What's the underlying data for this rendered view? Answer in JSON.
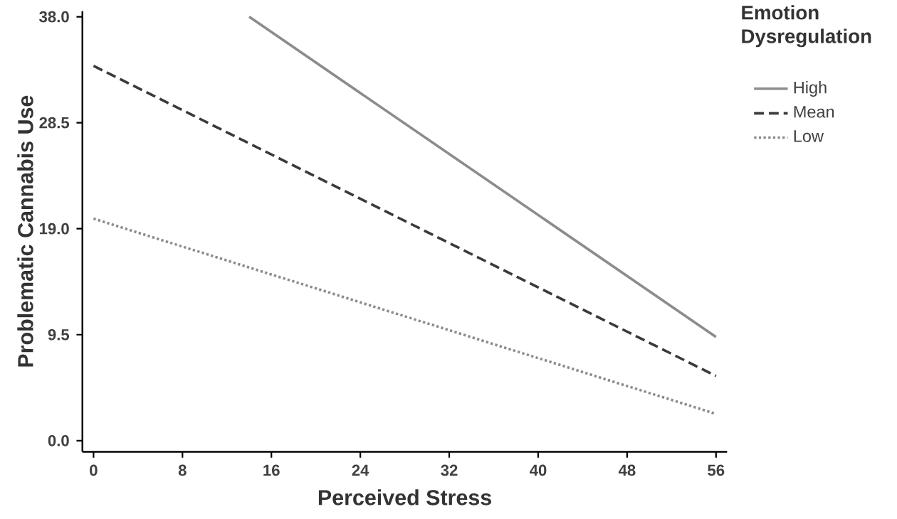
{
  "chart_data": {
    "type": "line",
    "xlabel": "Perceived Stress",
    "ylabel": "Problematic Cannabis Use",
    "legend_title": "Emotion Dysregulation",
    "series": [
      {
        "name": "High",
        "color": "#8c8c8c",
        "line_style": "solid",
        "x": [
          14,
          56
        ],
        "values": [
          38.0,
          9.3
        ]
      },
      {
        "name": "Mean",
        "color": "#3a3a3a",
        "line_style": "dashed",
        "x": [
          0,
          56
        ],
        "values": [
          33.6,
          5.8
        ]
      },
      {
        "name": "Low",
        "color": "#8c8c8c",
        "line_style": "dotted",
        "x": [
          0,
          56
        ],
        "values": [
          19.9,
          2.4
        ]
      }
    ],
    "xlim": [
      -1,
      57
    ],
    "ylim": [
      -1,
      38.5
    ],
    "xticks": [
      0,
      8,
      16,
      24,
      32,
      40,
      48,
      56
    ],
    "yticks": [
      {
        "value": 0,
        "label": "0.0"
      },
      {
        "value": 9.5,
        "label": "9.5"
      },
      {
        "value": 19,
        "label": "19.0"
      },
      {
        "value": 28.5,
        "label": "28.5"
      },
      {
        "value": 38,
        "label": "38.0"
      }
    ],
    "legend": "right",
    "grid": false,
    "marker": "none"
  }
}
